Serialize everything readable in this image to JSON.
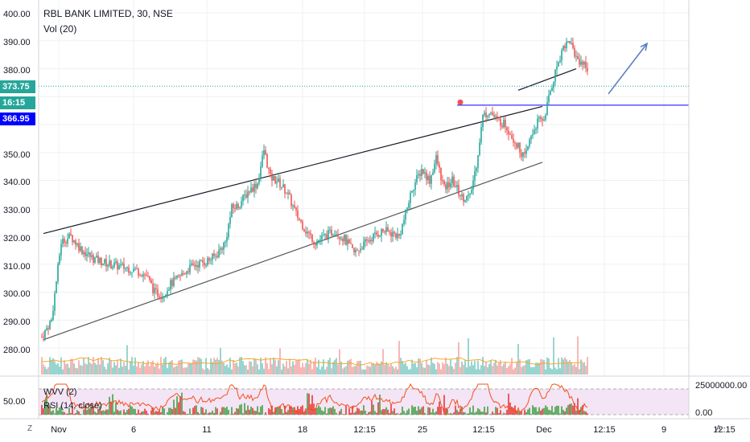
{
  "header": {
    "symbol_title": "RBL BANK LIMITED, 30, NSE",
    "volume_indicator": "Vol (20)"
  },
  "price_axis": {
    "ticks": [
      "400.00",
      "390.00",
      "380.00",
      "373.75",
      "16:15",
      "366.95",
      "350.00",
      "340.00",
      "330.00",
      "320.00",
      "310.00",
      "300.00",
      "290.00",
      "280.00"
    ],
    "current_price": "373.75",
    "countdown": "16:15",
    "line_price": "366.95"
  },
  "lower_pane": {
    "indicator_1": "WVV (2)",
    "indicator_2": "RSI (14, close)",
    "left_tick": "50.00",
    "right_ticks": [
      "25000000.00",
      "0.00"
    ]
  },
  "time_axis": {
    "labels": [
      "Nov",
      "6",
      "11",
      "18",
      "12:15",
      "25",
      "12:15",
      "Dec",
      "12:15",
      "9",
      "12:15"
    ]
  },
  "corner_buttons": {
    "left": "Z",
    "right": "A"
  },
  "colors": {
    "up": "#26a69a",
    "down": "#ef5350",
    "volume_up": "#80cbc4",
    "volume_down": "#f4a7a4",
    "price_tag": "#26a69a",
    "line_tag": "#0000ff",
    "rsi_band": "#e1bee7",
    "rsi_line": "#f4511e",
    "arrow": "#5b7fbf"
  },
  "chart_data": {
    "type": "candlestick",
    "title": "RBL BANK LIMITED, 30, NSE",
    "xlabel": "",
    "ylabel": "",
    "ylim": [
      274,
      402
    ],
    "x_tick_labels": [
      "Nov",
      "6",
      "11",
      "18",
      "12:15",
      "25",
      "12:15",
      "Dec",
      "12:15",
      "9",
      "12:15"
    ],
    "y_tick_labels": [
      "400.00",
      "390.00",
      "380.00",
      "350.00",
      "340.00",
      "330.00",
      "320.00",
      "310.00",
      "300.00",
      "290.00",
      "280.00"
    ],
    "price_path_anchors": [
      [
        0,
        284
      ],
      [
        3,
        287
      ],
      [
        6,
        290
      ],
      [
        9,
        304
      ],
      [
        12,
        318
      ],
      [
        18,
        320
      ],
      [
        25,
        315
      ],
      [
        32,
        312
      ],
      [
        42,
        310
      ],
      [
        50,
        309
      ],
      [
        58,
        308
      ],
      [
        65,
        306
      ],
      [
        70,
        300
      ],
      [
        75,
        299
      ],
      [
        80,
        303
      ],
      [
        85,
        305
      ],
      [
        90,
        308
      ],
      [
        96,
        310
      ],
      [
        102,
        311
      ],
      [
        108,
        313
      ],
      [
        114,
        318
      ],
      [
        118,
        330
      ],
      [
        122,
        331
      ],
      [
        128,
        336
      ],
      [
        134,
        339
      ],
      [
        138,
        351
      ],
      [
        142,
        341
      ],
      [
        146,
        340
      ],
      [
        152,
        336
      ],
      [
        158,
        328
      ],
      [
        164,
        322
      ],
      [
        170,
        318
      ],
      [
        176,
        320
      ],
      [
        182,
        322
      ],
      [
        188,
        319
      ],
      [
        194,
        314
      ],
      [
        200,
        317
      ],
      [
        206,
        320
      ],
      [
        212,
        322
      ],
      [
        218,
        321
      ],
      [
        222,
        320
      ],
      [
        226,
        328
      ],
      [
        230,
        337
      ],
      [
        236,
        344
      ],
      [
        241,
        340
      ],
      [
        245,
        348
      ],
      [
        250,
        337
      ],
      [
        255,
        340
      ],
      [
        261,
        334
      ],
      [
        266,
        334
      ],
      [
        270,
        346
      ],
      [
        274,
        363
      ],
      [
        278,
        365
      ],
      [
        282,
        362
      ],
      [
        288,
        360
      ],
      [
        292,
        356
      ],
      [
        296,
        352
      ],
      [
        300,
        348
      ],
      [
        304,
        356
      ],
      [
        308,
        361
      ],
      [
        312,
        362
      ],
      [
        316,
        372
      ],
      [
        320,
        381
      ],
      [
        324,
        388
      ],
      [
        328,
        390
      ],
      [
        332,
        384
      ],
      [
        336,
        382
      ],
      [
        340,
        380
      ],
      [
        344,
        372
      ],
      [
        348,
        371
      ],
      [
        351,
        372
      ]
    ],
    "channel_upper": {
      "from": [
        1,
        321
      ],
      "to": [
        311,
        366.5
      ]
    },
    "channel_lower": {
      "from": [
        1,
        283
      ],
      "to": [
        311,
        346.5
      ]
    },
    "break_line": {
      "from": [
        296,
        372.3
      ],
      "to": [
        332,
        380
      ]
    },
    "horizontal_line": 366.95,
    "current_price": 373.75,
    "marker": [
      260,
      368
    ],
    "projection_arrow": {
      "from": [
        352,
        371
      ],
      "to": [
        376,
        389
      ]
    },
    "candles_count": 340
  }
}
